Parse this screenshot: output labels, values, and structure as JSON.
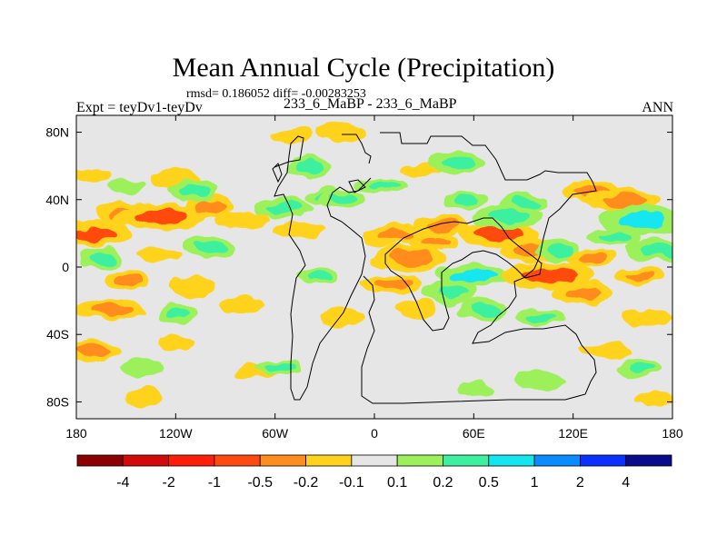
{
  "header": {
    "title": "Mean Annual Cycle (Precipitation)",
    "stats": "rmsd= 0.186052 diff= -0.00283253",
    "left_label": "Expt = teyDv1-teyDv",
    "center_label": "233_6_MaBP - 233_6_MaBP",
    "right_label": "ANN"
  },
  "chart_data": {
    "type": "heatmap",
    "title": "Mean Annual Cycle (Precipitation)",
    "subtitle": "rmsd= 0.186052 diff= -0.00283253",
    "x_ticks": [
      {
        "value": -180,
        "label": "180"
      },
      {
        "value": -120,
        "label": "120W"
      },
      {
        "value": -60,
        "label": "60W"
      },
      {
        "value": 0,
        "label": "0"
      },
      {
        "value": 60,
        "label": "60E"
      },
      {
        "value": 120,
        "label": "120E"
      },
      {
        "value": 180,
        "label": "180"
      }
    ],
    "y_ticks": [
      {
        "value": 80,
        "label": "80N"
      },
      {
        "value": 40,
        "label": "40N"
      },
      {
        "value": 0,
        "label": "0"
      },
      {
        "value": -40,
        "label": "40S"
      },
      {
        "value": -80,
        "label": "80S"
      }
    ],
    "xlim": [
      -180,
      180
    ],
    "ylim": [
      -90,
      90
    ],
    "colorbar": {
      "labels": [
        "-4",
        "-2",
        "-1",
        "-0.5",
        "-0.2",
        "-0.1",
        "0.1",
        "0.2",
        "0.5",
        "1",
        "2",
        "4"
      ],
      "colors": [
        "#8b0000",
        "#d20a0a",
        "#ff1e0a",
        "#ff4a0f",
        "#ff8c1e",
        "#ffd21e",
        "#e6e6e6",
        "#9cf05a",
        "#3cf0a0",
        "#14e6f0",
        "#0a8cff",
        "#0a32ff",
        "#0a0a8c"
      ]
    },
    "fields": [
      {
        "lon": -170,
        "lat": 20,
        "value": -0.7
      },
      {
        "lon": -150,
        "lat": 32,
        "value": -0.4
      },
      {
        "lon": -130,
        "lat": 30,
        "value": -0.7
      },
      {
        "lon": -100,
        "lat": 36,
        "value": -0.3
      },
      {
        "lon": -170,
        "lat": 55,
        "value": -0.15
      },
      {
        "lon": -120,
        "lat": 52,
        "value": -0.15
      },
      {
        "lon": -150,
        "lat": 48,
        "value": 0.15
      },
      {
        "lon": -110,
        "lat": 45,
        "value": 0.25
      },
      {
        "lon": -80,
        "lat": 28,
        "value": -0.2
      },
      {
        "lon": -165,
        "lat": 5,
        "value": 0.25
      },
      {
        "lon": -130,
        "lat": 8,
        "value": -0.15
      },
      {
        "lon": -100,
        "lat": 12,
        "value": 0.2
      },
      {
        "lon": -150,
        "lat": -8,
        "value": -0.3
      },
      {
        "lon": -110,
        "lat": -12,
        "value": -0.2
      },
      {
        "lon": -160,
        "lat": -25,
        "value": -0.4
      },
      {
        "lon": -120,
        "lat": -28,
        "value": 0.2
      },
      {
        "lon": -80,
        "lat": -22,
        "value": -0.15
      },
      {
        "lon": -170,
        "lat": -50,
        "value": -0.25
      },
      {
        "lon": -120,
        "lat": -45,
        "value": -0.15
      },
      {
        "lon": -140,
        "lat": -60,
        "value": 0.15
      },
      {
        "lon": -70,
        "lat": -62,
        "value": -0.15
      },
      {
        "lon": -140,
        "lat": -78,
        "value": -0.15
      },
      {
        "lon": -58,
        "lat": -60,
        "value": 0.2
      },
      {
        "lon": -55,
        "lat": 35,
        "value": 0.25
      },
      {
        "lon": -30,
        "lat": 42,
        "value": 0.2
      },
      {
        "lon": -20,
        "lat": 40,
        "value": 0.2
      },
      {
        "lon": -45,
        "lat": 22,
        "value": -0.2
      },
      {
        "lon": -40,
        "lat": 60,
        "value": 0.2
      },
      {
        "lon": -50,
        "lat": 78,
        "value": -0.15
      },
      {
        "lon": -20,
        "lat": 80,
        "value": -0.15
      },
      {
        "lon": -35,
        "lat": -5,
        "value": 0.2
      },
      {
        "lon": -20,
        "lat": -30,
        "value": -0.15
      },
      {
        "lon": 5,
        "lat": 48,
        "value": 0.2
      },
      {
        "lon": 5,
        "lat": 18,
        "value": -0.2
      },
      {
        "lon": 12,
        "lat": 20,
        "value": -0.4
      },
      {
        "lon": 20,
        "lat": 5,
        "value": -0.5
      },
      {
        "lon": 35,
        "lat": 15,
        "value": -0.3
      },
      {
        "lon": 40,
        "lat": 25,
        "value": -0.3
      },
      {
        "lon": 10,
        "lat": -10,
        "value": -0.3
      },
      {
        "lon": 25,
        "lat": -25,
        "value": -0.2
      },
      {
        "lon": 30,
        "lat": 58,
        "value": -0.15
      },
      {
        "lon": 50,
        "lat": 62,
        "value": 0.2
      },
      {
        "lon": 55,
        "lat": 40,
        "value": 0.25
      },
      {
        "lon": 45,
        "lat": -15,
        "value": 0.3
      },
      {
        "lon": 60,
        "lat": -5,
        "value": 0.5
      },
      {
        "lon": 65,
        "lat": -25,
        "value": 0.3
      },
      {
        "lon": 75,
        "lat": 20,
        "value": -0.7
      },
      {
        "lon": 80,
        "lat": 30,
        "value": 0.4
      },
      {
        "lon": 90,
        "lat": 38,
        "value": 0.3
      },
      {
        "lon": 95,
        "lat": 10,
        "value": -0.4
      },
      {
        "lon": 105,
        "lat": -5,
        "value": -0.7
      },
      {
        "lon": 110,
        "lat": 10,
        "value": 0.3
      },
      {
        "lon": 100,
        "lat": -30,
        "value": 0.25
      },
      {
        "lon": 125,
        "lat": -15,
        "value": -0.3
      },
      {
        "lon": 130,
        "lat": 5,
        "value": -0.3
      },
      {
        "lon": 130,
        "lat": 45,
        "value": -0.3
      },
      {
        "lon": 150,
        "lat": 40,
        "value": -0.5
      },
      {
        "lon": 160,
        "lat": 28,
        "value": 0.7
      },
      {
        "lon": 145,
        "lat": 18,
        "value": 0.3
      },
      {
        "lon": 170,
        "lat": 10,
        "value": 0.3
      },
      {
        "lon": 160,
        "lat": -5,
        "value": -0.3
      },
      {
        "lon": 165,
        "lat": -30,
        "value": -0.2
      },
      {
        "lon": 140,
        "lat": -50,
        "value": -0.2
      },
      {
        "lon": 160,
        "lat": -60,
        "value": 0.2
      },
      {
        "lon": 170,
        "lat": -78,
        "value": -0.15
      },
      {
        "lon": 100,
        "lat": -68,
        "value": 0.15
      },
      {
        "lon": 60,
        "lat": -72,
        "value": 0.15
      }
    ]
  }
}
